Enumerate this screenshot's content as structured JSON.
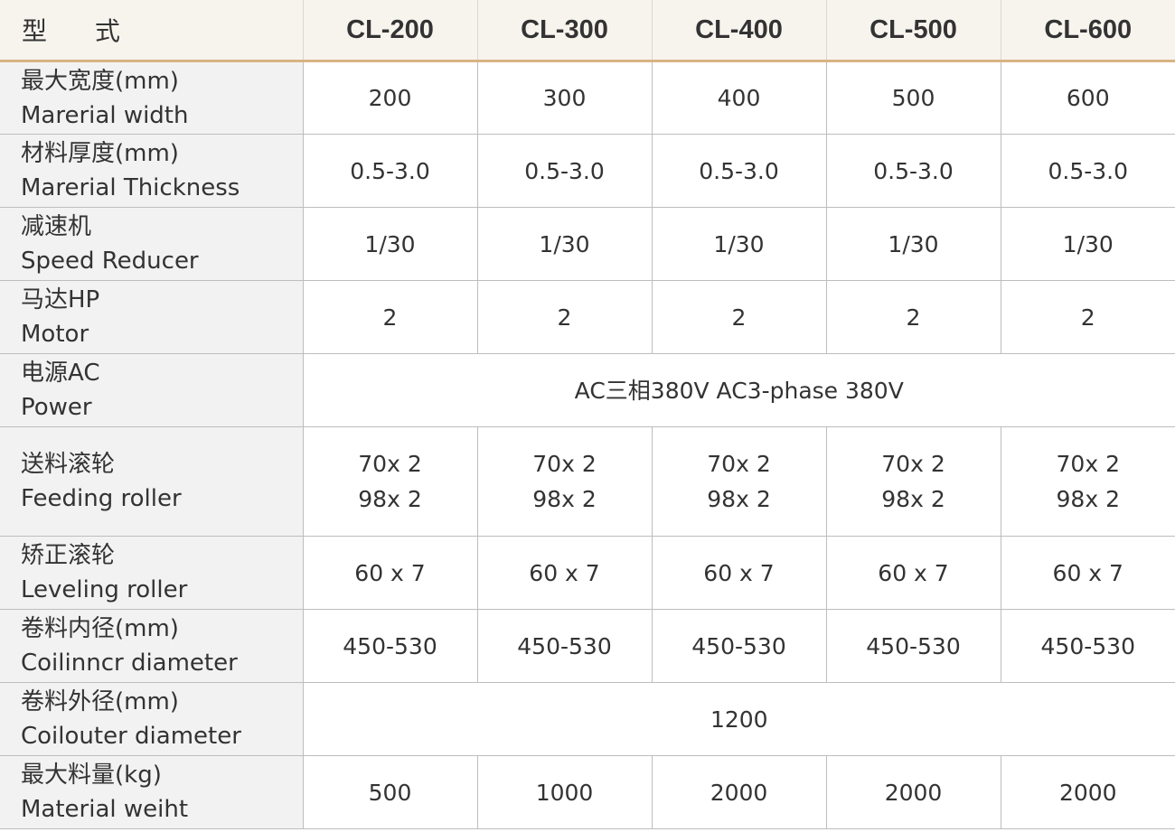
{
  "header": {
    "type_label": "型 式",
    "models": [
      "CL-200",
      "CL-300",
      "CL-400",
      "CL-500",
      "CL-600"
    ]
  },
  "rows": [
    {
      "cn": "最大宽度(mm)",
      "en": "Marerial width",
      "values": [
        "200",
        "300",
        "400",
        "500",
        "600"
      ]
    },
    {
      "cn": "材料厚度(mm)",
      "en": "Marerial Thickness",
      "values": [
        "0.5-3.0",
        "0.5-3.0",
        "0.5-3.0",
        "0.5-3.0",
        "0.5-3.0"
      ]
    },
    {
      "cn": "减速机",
      "en": "Speed Reducer",
      "values": [
        "1/30",
        "1/30",
        "1/30",
        "1/30",
        "1/30"
      ]
    },
    {
      "cn": "马达HP",
      "en": "Motor",
      "values": [
        "2",
        "2",
        "2",
        "2",
        "2"
      ]
    },
    {
      "cn": "电源AC",
      "en": "Power",
      "span_value": "AC三相380V AC3-phase 380V"
    },
    {
      "cn": "送料滚轮",
      "en": "Feeding roller",
      "values": [
        [
          "70x 2",
          "98x 2"
        ],
        [
          "70x 2",
          "98x 2"
        ],
        [
          "70x 2",
          "98x 2"
        ],
        [
          "70x 2",
          "98x 2"
        ],
        [
          "70x 2",
          "98x 2"
        ]
      ]
    },
    {
      "cn": "矫正滚轮",
      "en": "Leveling roller",
      "values": [
        "60 x 7",
        "60 x 7",
        "60 x 7",
        "60 x 7",
        "60 x 7"
      ]
    },
    {
      "cn": "卷料内径(mm)",
      "en": "Coilinncr diameter",
      "values": [
        "450-530",
        "450-530",
        "450-530",
        "450-530",
        "450-530"
      ]
    },
    {
      "cn": "卷料外径(mm)",
      "en": "Coilouter diameter",
      "span_value": "1200"
    },
    {
      "cn": "最大料量(kg)",
      "en": "Material weiht",
      "values": [
        "500",
        "1000",
        "2000",
        "2000",
        "2000"
      ]
    }
  ]
}
